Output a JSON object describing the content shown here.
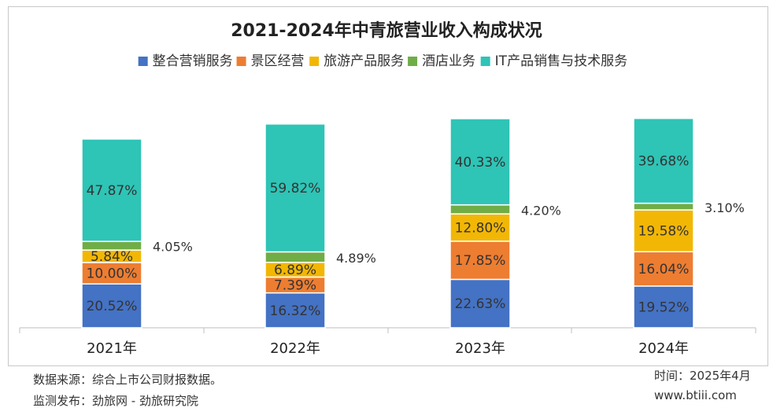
{
  "chart_data": {
    "type": "bar",
    "stacked": true,
    "title": "2021-2024年中青旅营业收入构成状况",
    "categories": [
      "2021年",
      "2022年",
      "2023年",
      "2024年"
    ],
    "series": [
      {
        "name": "整合营销服务",
        "color": "#4472C4",
        "values": [
          20.52,
          16.32,
          22.63,
          19.52
        ],
        "labels": [
          "20.52%",
          "16.32%",
          "22.63%",
          "19.52%"
        ]
      },
      {
        "name": "景区经营",
        "color": "#ED7D31",
        "values": [
          10.0,
          7.39,
          17.85,
          16.04
        ],
        "labels": [
          "10.00%",
          "7.39%",
          "17.85%",
          "16.04%"
        ]
      },
      {
        "name": "旅游产品服务",
        "color": "#F2B705",
        "values": [
          5.84,
          6.89,
          12.8,
          19.58
        ],
        "labels": [
          "5.84%",
          "6.89%",
          "12.80%",
          "19.58%"
        ]
      },
      {
        "name": "酒店业务",
        "color": "#70AD47",
        "values": [
          4.05,
          4.89,
          4.2,
          3.1
        ],
        "labels": [
          "4.05%",
          "4.89%",
          "4.20%",
          "3.10%"
        ]
      },
      {
        "name": "IT产品销售与技术服务",
        "color": "#2EC4B6",
        "values": [
          47.87,
          59.82,
          40.33,
          39.68
        ],
        "labels": [
          "47.87%",
          "59.82%",
          "40.33%",
          "39.68%"
        ]
      }
    ],
    "legend_position": "top",
    "grid": false
  },
  "footer": {
    "source": "数据来源：综合上市公司财报数据。",
    "publisher": "监测发布：劲旅网 - 劲旅研究院",
    "date": "时间：2025年4月",
    "website": "www.btiii.com"
  }
}
